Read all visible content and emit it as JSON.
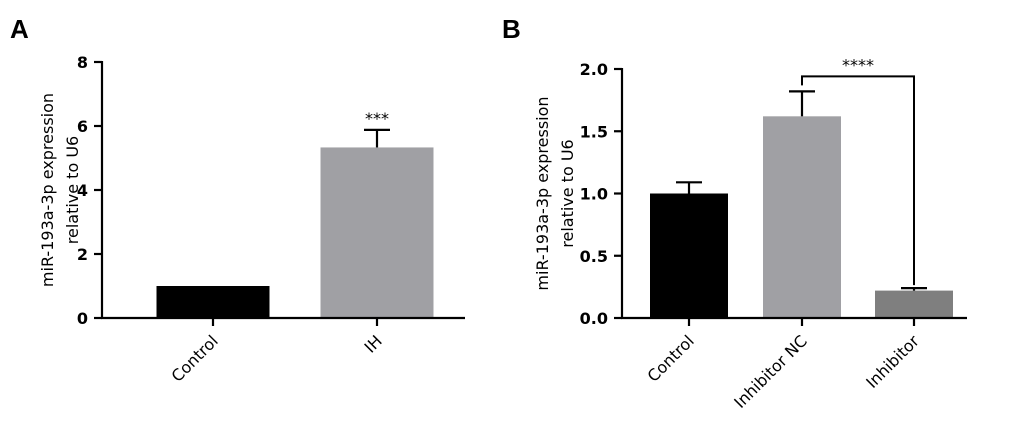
{
  "chart_data": [
    {
      "panel": "A",
      "type": "bar",
      "categories": [
        "Control",
        "IH"
      ],
      "values": [
        1.0,
        5.33
      ],
      "errors": [
        0.0,
        0.55
      ],
      "colors": [
        "#000000",
        "#a0a0a4"
      ],
      "ylabel_lines": [
        "miR-193a-3p expression",
        "relative to U6"
      ],
      "ylim": [
        0,
        8
      ],
      "yticks": [
        0,
        2,
        4,
        6,
        8
      ],
      "ytick_labels": [
        "0",
        "2",
        "4",
        "6",
        "8"
      ],
      "significance": [
        {
          "label": "***",
          "bar_index": 1
        }
      ],
      "grid": false,
      "legend": "none"
    },
    {
      "panel": "B",
      "type": "bar",
      "categories": [
        "Control",
        "Inhibitor NC",
        "Inhibitor"
      ],
      "values": [
        1.0,
        1.62,
        0.22
      ],
      "errors": [
        0.09,
        0.2,
        0.02
      ],
      "colors": [
        "#000000",
        "#a0a0a4",
        "#7f7f7f"
      ],
      "ylabel_lines": [
        "miR-193a-3p expression",
        "relative to U6"
      ],
      "ylim": [
        0,
        2.0
      ],
      "yticks": [
        0,
        0.5,
        1.0,
        1.5,
        2.0
      ],
      "ytick_labels": [
        "0.0",
        "0.5",
        "1.0",
        "1.5",
        "2.0"
      ],
      "significance": [
        {
          "label": "****",
          "from_index": 1,
          "to_index": 2
        }
      ],
      "grid": false,
      "legend": "none"
    }
  ]
}
